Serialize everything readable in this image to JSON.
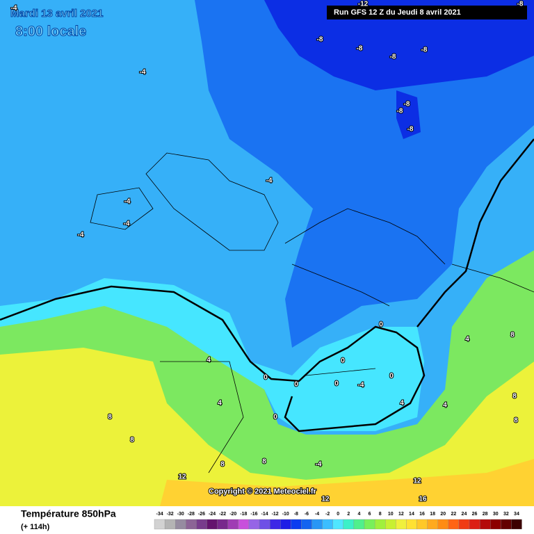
{
  "header": {
    "date": "Mardi 13 avril 2021",
    "time": "8:00 locale",
    "run": "Run GFS 12 Z du Jeudi 8 avril 2021"
  },
  "map_labels": [
    "-4",
    "-12",
    "-8",
    "-8",
    "-8",
    "-8",
    "-8",
    "-4",
    "-8",
    "-8",
    "-8",
    "-4",
    "-4",
    "-4",
    "-4",
    "0",
    "4",
    "8",
    "4",
    "0",
    "0",
    "0",
    "0",
    "-4",
    "0",
    "4",
    "4",
    "0",
    "4",
    "8",
    "8",
    "8",
    "8",
    "-4",
    "12",
    "12",
    "16",
    "12",
    "8",
    "8"
  ],
  "copyright": "Copyright © 2021 Meteociel.fr",
  "legend": {
    "title": "Température 850hPa",
    "lead": "(+ 114h)",
    "ticks": [
      -34,
      -32,
      -30,
      -28,
      -26,
      -24,
      -22,
      -20,
      -18,
      -16,
      -14,
      -12,
      -10,
      -8,
      -6,
      -4,
      -2,
      0,
      2,
      4,
      6,
      8,
      10,
      12,
      14,
      16,
      18,
      20,
      22,
      24,
      26,
      28,
      30,
      32,
      34
    ],
    "colors": [
      "#d2d2d2",
      "#b4b4b4",
      "#968ca0",
      "#8c6496",
      "#783c8c",
      "#64146e",
      "#78288c",
      "#a03cb4",
      "#c850dc",
      "#9664e6",
      "#6e50e6",
      "#3c28e6",
      "#1e1ee6",
      "#0a3cf0",
      "#1464f0",
      "#2896f5",
      "#3cbeff",
      "#50e6ff",
      "#3cf0c8",
      "#50f08c",
      "#78f05a",
      "#a0f03c",
      "#c8f032",
      "#f0f03c",
      "#ffe132",
      "#ffc828",
      "#ffaa1e",
      "#ff8c14",
      "#ff6414",
      "#f03c14",
      "#dc1e14",
      "#b40a0a",
      "#8c0000",
      "#640000",
      "#3c0000"
    ]
  }
}
